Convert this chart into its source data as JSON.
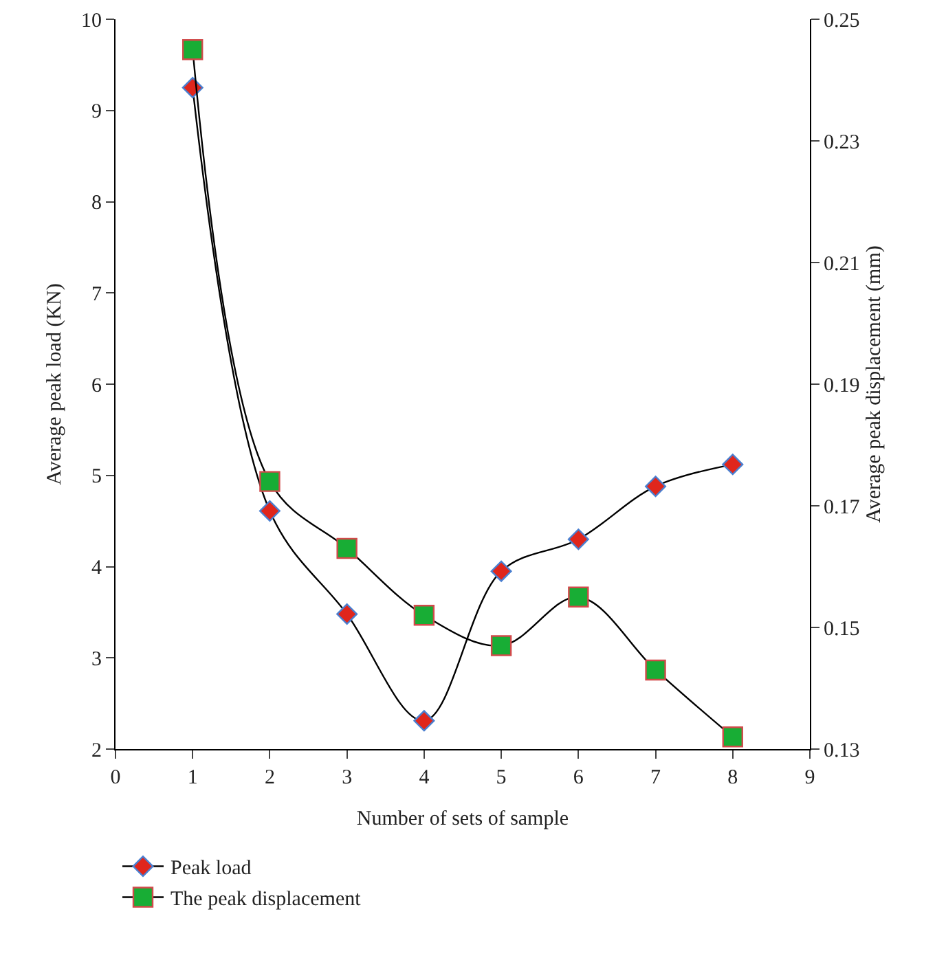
{
  "chart_data": {
    "type": "line",
    "xlabel": "Number of sets of sample",
    "ylabel": "Average peak load (KN)",
    "y2label": "Average peak displacement (mm)",
    "x": [
      1,
      2,
      3,
      4,
      5,
      6,
      7,
      8
    ],
    "series": [
      {
        "name": "Peak load",
        "color": "#e0261c",
        "marker": "diamond",
        "values": [
          9.25,
          4.61,
          3.48,
          2.31,
          3.95,
          4.3,
          4.88,
          5.12
        ]
      },
      {
        "name": "The peak displacement",
        "color": "#18ad35",
        "marker": "square",
        "axis": "y2",
        "values": [
          0.245,
          0.174,
          0.163,
          0.152,
          0.147,
          0.155,
          0.143,
          0.132
        ]
      }
    ],
    "xlim": [
      0,
      9
    ],
    "xticks": [
      0,
      1,
      2,
      3,
      4,
      5,
      6,
      7,
      8,
      9
    ],
    "ylim": [
      2,
      10
    ],
    "yticks": [
      2,
      3,
      4,
      5,
      6,
      7,
      8,
      9,
      10
    ],
    "y2lim": [
      0.13,
      0.25
    ],
    "y2ticks": [
      0.13,
      0.15,
      0.17,
      0.19,
      0.21,
      0.23,
      0.25
    ],
    "grid": false,
    "legend": "bottom left"
  }
}
